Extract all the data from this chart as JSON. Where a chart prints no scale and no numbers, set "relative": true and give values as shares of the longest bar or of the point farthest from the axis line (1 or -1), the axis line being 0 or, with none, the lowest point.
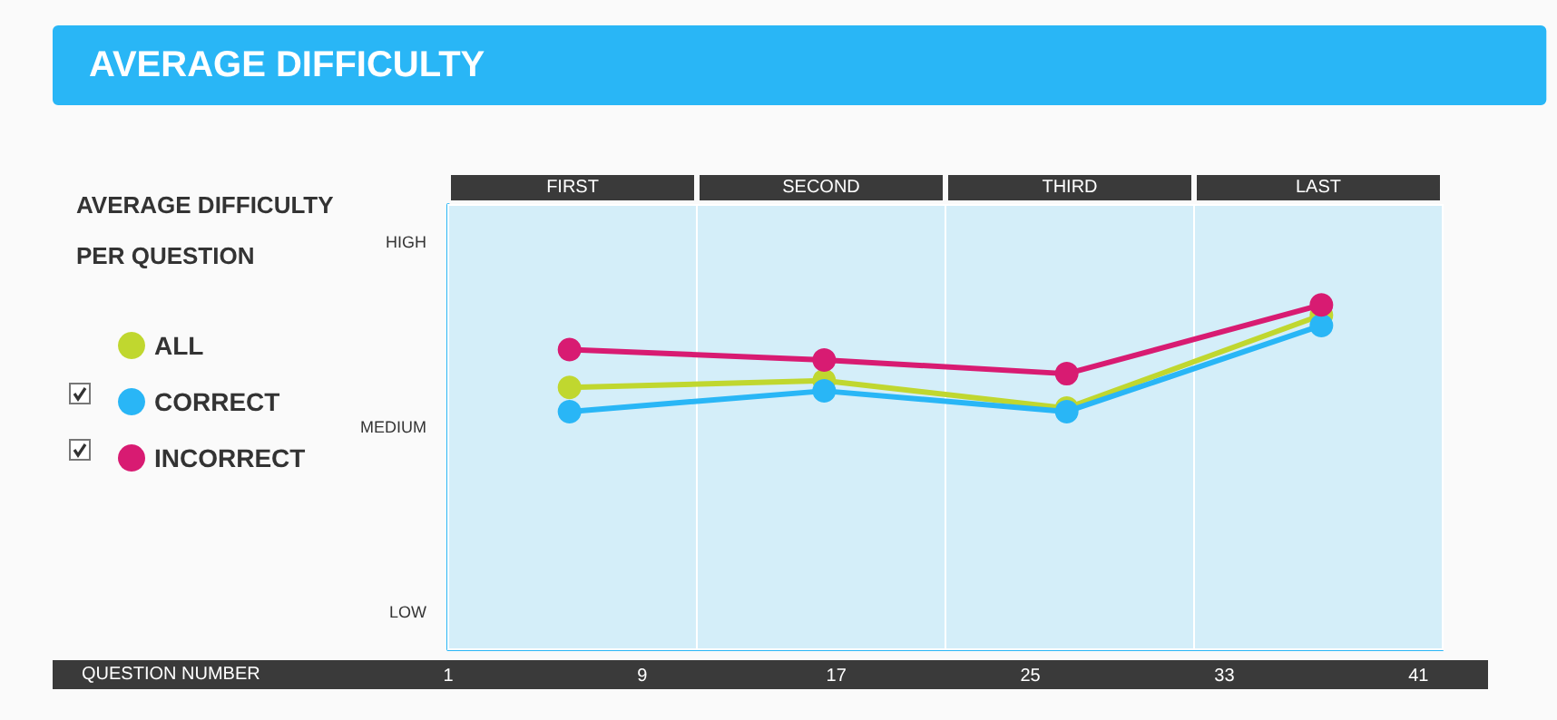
{
  "chart_data": {
    "type": "line",
    "title": "AVERAGE DIFFICULTY",
    "subtitle": "AVERAGE DIFFICULTY PER QUESTION",
    "x": [
      6,
      16.5,
      26.5,
      37
    ],
    "series": [
      {
        "name": "ALL",
        "color": "#c0d72f",
        "values": [
          0.76,
          0.78,
          0.7,
          0.97
        ]
      },
      {
        "name": "CORRECT",
        "color": "#29b6f6",
        "values": [
          0.69,
          0.75,
          0.69,
          0.94
        ]
      },
      {
        "name": "INCORRECT",
        "color": "#d81b72",
        "values": [
          0.87,
          0.84,
          0.8,
          1
        ]
      }
    ],
    "relative": true,
    "annotations": [
      "LOW",
      "MEDIUM",
      "HIGH",
      "QUESTION NUMBER"
    ],
    "xlim": [
      1,
      42
    ],
    "xticks": [
      1,
      9,
      17,
      25,
      33,
      41
    ],
    "bands": [
      {
        "axis": "x",
        "from": 1,
        "to": 11.25,
        "label": "FIRST",
        "color": "#d4eef9"
      },
      {
        "axis": "x",
        "from": 11.25,
        "to": 21.5,
        "label": "SECOND",
        "color": "#d4eef9"
      },
      {
        "axis": "x",
        "from": 21.5,
        "to": 31.75,
        "label": "THIRD",
        "color": "#d4eef9"
      },
      {
        "axis": "x",
        "from": 31.75,
        "to": 42,
        "label": "LAST",
        "color": "#d4eef9"
      }
    ],
    "legend": "left",
    "marker": "circle",
    "line_style": "solid"
  }
}
